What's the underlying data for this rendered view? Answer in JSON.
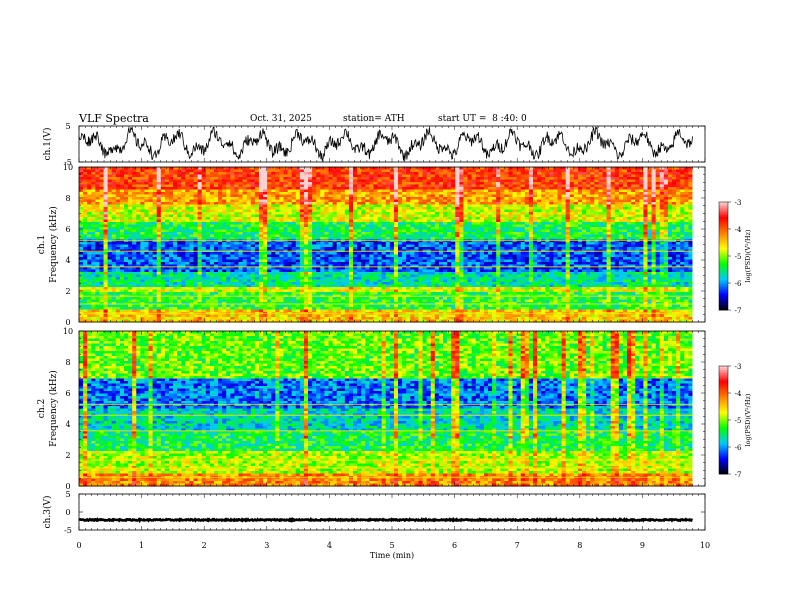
{
  "header": {
    "title": "VLF Spectra",
    "date": "Oct. 31, 2025",
    "station": "station= ATH",
    "start_ut": "start UT =  8 :40: 0"
  },
  "chart_data": [
    {
      "type": "line",
      "name": "ch1-waveform",
      "ylabel": "ch.1(V)",
      "ylim": [
        -5,
        5
      ],
      "yticks": [
        "5",
        "-5"
      ],
      "xlim": [
        0,
        10
      ],
      "series": [
        {
          "values_desc": "noisy waveform between about -4 and +4 V over 0-9.8 min"
        }
      ]
    },
    {
      "type": "heatmap",
      "name": "ch1-spectrogram",
      "ylabel": "ch.1 Frequency (kHz)",
      "ylim": [
        0,
        10
      ],
      "yticks": [
        "0",
        "2",
        "4",
        "6",
        "8",
        "10"
      ],
      "xlim": [
        0,
        10
      ],
      "data_end_min": 9.8,
      "bands_khz": [
        {
          "from": 0,
          "to": 0.8,
          "level": -4.5
        },
        {
          "from": 0.8,
          "to": 2.0,
          "level": -5.3
        },
        {
          "from": 2.0,
          "to": 2.3,
          "level": -4.8
        },
        {
          "from": 2.3,
          "to": 3.2,
          "level": -5.6
        },
        {
          "from": 3.2,
          "to": 5.4,
          "level": -6.2
        },
        {
          "from": 5.4,
          "to": 6.5,
          "level": -5.4
        },
        {
          "from": 6.5,
          "to": 7.6,
          "level": -4.8
        },
        {
          "from": 7.6,
          "to": 8.6,
          "level": -4.3
        },
        {
          "from": 8.6,
          "to": 10,
          "level": -3.8
        }
      ],
      "colorbar": {
        "label": "log(PSD)(V²/Hz)",
        "range": [
          -7,
          -3
        ],
        "ticks": [
          "-3",
          "-4",
          "-5",
          "-6",
          "-7"
        ]
      }
    },
    {
      "type": "heatmap",
      "name": "ch2-spectrogram",
      "ylabel": "ch.2 Frequency (kHz)",
      "ylim": [
        0,
        10
      ],
      "yticks": [
        "0",
        "2",
        "4",
        "6",
        "8",
        "10"
      ],
      "xlim": [
        0,
        10
      ],
      "data_end_min": 9.8,
      "bands_khz": [
        {
          "from": 0,
          "to": 0.8,
          "level": -4.2
        },
        {
          "from": 0.8,
          "to": 2.2,
          "level": -4.9
        },
        {
          "from": 2.2,
          "to": 3.6,
          "level": -5.4
        },
        {
          "from": 3.6,
          "to": 5.0,
          "level": -5.7
        },
        {
          "from": 5.0,
          "to": 7.0,
          "level": -6.1
        },
        {
          "from": 7.0,
          "to": 10,
          "level": -5.1
        }
      ],
      "colorbar": {
        "label": "log(PSD)(V²/Hz)",
        "range": [
          -7,
          -3
        ],
        "ticks": [
          "-3",
          "-4",
          "-5",
          "-6",
          "-7"
        ]
      }
    },
    {
      "type": "line",
      "name": "ch3-waveform",
      "ylabel": "ch.3(V)",
      "ylim": [
        -5,
        5
      ],
      "yticks": [
        "5",
        "0",
        "-5"
      ],
      "xlim": [
        0,
        10
      ],
      "series": [
        {
          "values_desc": "nearly flat trace near -2.5 V"
        }
      ]
    }
  ],
  "x_axis": {
    "label": "Time (min)",
    "ticks": [
      "0",
      "1",
      "2",
      "3",
      "4",
      "5",
      "6",
      "7",
      "8",
      "9",
      "10"
    ]
  },
  "colors": {
    "colormap": [
      "#000000",
      "#0000ff",
      "#00c8ff",
      "#00ff00",
      "#ffff00",
      "#ff8000",
      "#ff0000",
      "#ffd0d0"
    ],
    "trace": "#000000"
  }
}
